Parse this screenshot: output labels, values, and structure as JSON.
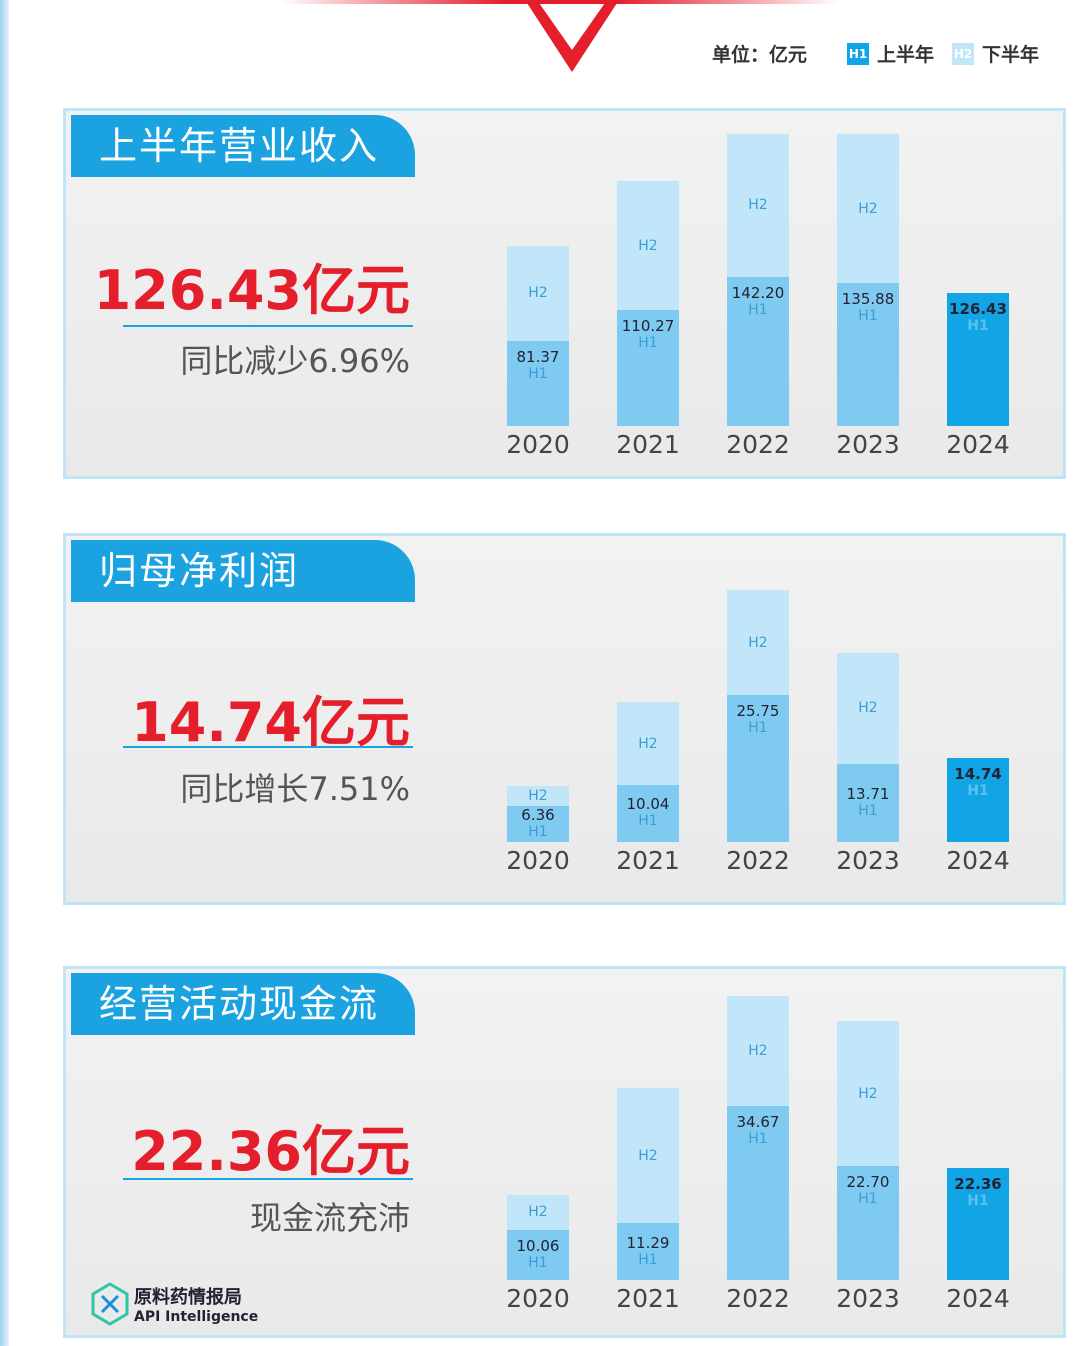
{
  "legend": {
    "unit": "单位：亿元",
    "h1_badge": "H1",
    "h1_label": "上半年",
    "h2_badge": "H2",
    "h2_label": "下半年"
  },
  "colors": {
    "accent": "#1aa3e0",
    "red": "#e41e2b",
    "h1": "#7fcaf0",
    "h2": "#c2e6f9",
    "current": "#12a5e6"
  },
  "watermark": {
    "cn": "原料药情报局",
    "en": "API Intelligence"
  },
  "chart_data": [
    {
      "type": "bar",
      "stacked": true,
      "title": "上半年营业收入",
      "headline": "126.43亿元",
      "subtitle": "同比减少6.96%",
      "categories": [
        "2020",
        "2021",
        "2022",
        "2023",
        "2024"
      ],
      "series": [
        {
          "name": "H1",
          "values": [
            81.37,
            110.27,
            142.2,
            135.88,
            126.43
          ]
        },
        {
          "name": "H2",
          "values": [
            90,
            123,
            136,
            142,
            null
          ]
        }
      ],
      "h1_labels": [
        "81.37",
        "110.27",
        "142.20",
        "135.88",
        "126.43"
      ]
    },
    {
      "type": "bar",
      "stacked": true,
      "title": "归母净利润",
      "headline": "14.74亿元",
      "subtitle": "同比增长7.51%",
      "categories": [
        "2020",
        "2021",
        "2022",
        "2023",
        "2024"
      ],
      "series": [
        {
          "name": "H1",
          "values": [
            6.36,
            10.04,
            25.75,
            13.71,
            14.74
          ]
        },
        {
          "name": "H2",
          "values": [
            3.5,
            14.5,
            18.5,
            19.5,
            null
          ]
        }
      ],
      "h1_labels": [
        "6.36",
        "10.04",
        "25.75",
        "13.71",
        "14.74"
      ]
    },
    {
      "type": "bar",
      "stacked": true,
      "title": "经营活动现金流",
      "headline": "22.36亿元",
      "subtitle": "现金流充沛",
      "categories": [
        "2020",
        "2021",
        "2022",
        "2023",
        "2024"
      ],
      "series": [
        {
          "name": "H1",
          "values": [
            10.06,
            11.29,
            34.67,
            22.7,
            22.36
          ]
        },
        {
          "name": "H2",
          "values": [
            7,
            27,
            22,
            29,
            null
          ]
        }
      ],
      "h1_labels": [
        "10.06",
        "11.29",
        "34.67",
        "22.70",
        "22.36"
      ]
    }
  ]
}
